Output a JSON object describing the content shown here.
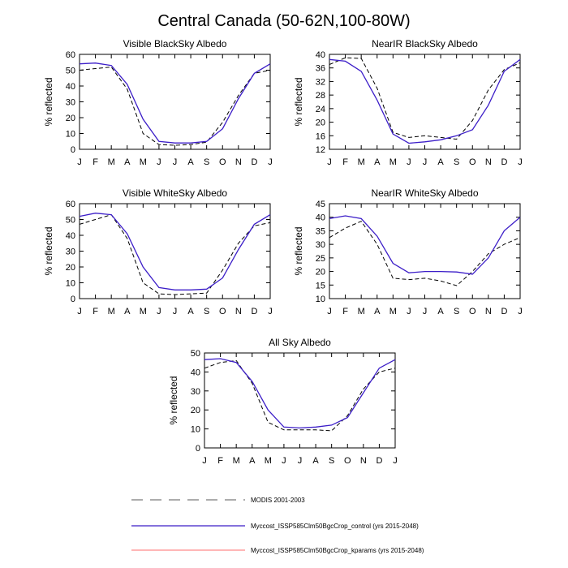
{
  "figure_title": "Central Canada (50-62N,100-80W)",
  "months": [
    "J",
    "F",
    "M",
    "A",
    "M",
    "J",
    "J",
    "A",
    "S",
    "O",
    "N",
    "D",
    "J"
  ],
  "colors": {
    "modis": "#000000",
    "control": "#3c1ec8",
    "kparams": "#ff8a8a"
  },
  "legend": [
    {
      "key": "modis",
      "label": "MODIS 2001-2003",
      "style": "dashed",
      "color": "#7a7a7a"
    },
    {
      "key": "control",
      "label": "Myccost_ISSP585Clm50BgcCrop_control (yrs 2015-2048)",
      "style": "solid",
      "color": "#3c1ec8"
    },
    {
      "key": "kparams",
      "label": "Myccost_ISSP585Clm50BgcCrop_kparams (yrs 2015-2048)",
      "style": "solid",
      "color": "#ff8a8a"
    }
  ],
  "chart_data": [
    {
      "type": "line",
      "title": "Visible BlackSky Albedo",
      "ylabel": "% reflected",
      "ylim": [
        0,
        60
      ],
      "yticks": [
        0,
        10,
        20,
        30,
        40,
        50,
        60
      ],
      "x": [
        "J",
        "F",
        "M",
        "A",
        "M",
        "J",
        "J",
        "A",
        "S",
        "O",
        "N",
        "D",
        "J"
      ],
      "series": [
        {
          "name": "MODIS 2001-2003",
          "key": "modis",
          "values": [
            50,
            51,
            52,
            38,
            10,
            3,
            2.5,
            3,
            4.5,
            17,
            34,
            48,
            50
          ]
        },
        {
          "name": "Myccost_ISSP585Clm50BgcCrop_control (yrs 2015-2048)",
          "key": "control",
          "values": [
            54,
            54.5,
            53,
            41,
            19,
            5,
            4,
            4,
            5,
            13,
            32,
            48,
            54
          ]
        }
      ]
    },
    {
      "type": "line",
      "title": "NearIR BlackSky Albedo",
      "ylabel": "% reflected",
      "ylim": [
        12,
        40
      ],
      "yticks": [
        12,
        16,
        20,
        24,
        28,
        32,
        36,
        40
      ],
      "x": [
        "J",
        "F",
        "M",
        "A",
        "M",
        "J",
        "J",
        "A",
        "S",
        "O",
        "N",
        "D",
        "J"
      ],
      "series": [
        {
          "name": "MODIS 2001-2003",
          "key": "modis",
          "values": [
            37,
            39,
            38.8,
            30,
            17,
            15.5,
            16,
            15.5,
            15,
            20.5,
            29.5,
            35.5,
            37.5
          ]
        },
        {
          "name": "Myccost_ISSP585Clm50BgcCrop_control (yrs 2015-2048)",
          "key": "control",
          "values": [
            38.5,
            38,
            35,
            26.5,
            16.5,
            13.8,
            14.2,
            14.8,
            16,
            17.8,
            25,
            35,
            38.5
          ]
        }
      ]
    },
    {
      "type": "line",
      "title": "Visible WhiteSky Albedo",
      "ylabel": "% reflected",
      "ylim": [
        0,
        60
      ],
      "yticks": [
        0,
        10,
        20,
        30,
        40,
        50,
        60
      ],
      "x": [
        "J",
        "F",
        "M",
        "A",
        "M",
        "J",
        "J",
        "A",
        "S",
        "O",
        "N",
        "D",
        "J"
      ],
      "series": [
        {
          "name": "MODIS 2001-2003",
          "key": "modis",
          "values": [
            47,
            50,
            53,
            38,
            10,
            3,
            2.5,
            3,
            3.5,
            18,
            35,
            46,
            48
          ]
        },
        {
          "name": "Myccost_ISSP585Clm50BgcCrop_control (yrs 2015-2048)",
          "key": "control",
          "values": [
            52,
            54,
            53,
            41,
            20,
            7,
            5.5,
            5.5,
            6,
            13,
            31,
            47,
            53
          ]
        }
      ]
    },
    {
      "type": "line",
      "title": "NearIR WhiteSky Albedo",
      "ylabel": "% reflected",
      "ylim": [
        10,
        45
      ],
      "yticks": [
        10,
        15,
        20,
        25,
        30,
        35,
        40,
        45
      ],
      "x": [
        "J",
        "F",
        "M",
        "A",
        "M",
        "J",
        "J",
        "A",
        "S",
        "O",
        "N",
        "D",
        "J"
      ],
      "series": [
        {
          "name": "MODIS 2001-2003",
          "key": "modis",
          "values": [
            32.5,
            36,
            38.5,
            30,
            17.5,
            17,
            17.5,
            16.5,
            14.8,
            20,
            26.5,
            30,
            32.5
          ]
        },
        {
          "name": "Myccost_ISSP585Clm50BgcCrop_control (yrs 2015-2048)",
          "key": "control",
          "values": [
            39.5,
            40.5,
            39.5,
            33,
            23,
            19.5,
            20,
            20,
            19.8,
            19,
            25,
            35,
            40
          ]
        }
      ]
    },
    {
      "type": "line",
      "title": "All Sky Albedo",
      "ylabel": "% reflected",
      "ylim": [
        0,
        50
      ],
      "yticks": [
        0,
        10,
        20,
        30,
        40,
        50
      ],
      "x": [
        "J",
        "F",
        "M",
        "A",
        "M",
        "J",
        "J",
        "A",
        "S",
        "O",
        "N",
        "D",
        "J"
      ],
      "series": [
        {
          "name": "MODIS 2001-2003",
          "key": "modis",
          "values": [
            42,
            45,
            46,
            34,
            13.5,
            9.5,
            9.5,
            9.5,
            9,
            17,
            31,
            40,
            42
          ]
        },
        {
          "name": "Myccost_ISSP585Clm50BgcCrop_control (yrs 2015-2048)",
          "key": "control",
          "values": [
            46.5,
            47,
            45,
            35,
            20,
            11,
            10.5,
            11,
            12,
            16,
            29,
            42,
            46.5
          ]
        }
      ]
    }
  ]
}
